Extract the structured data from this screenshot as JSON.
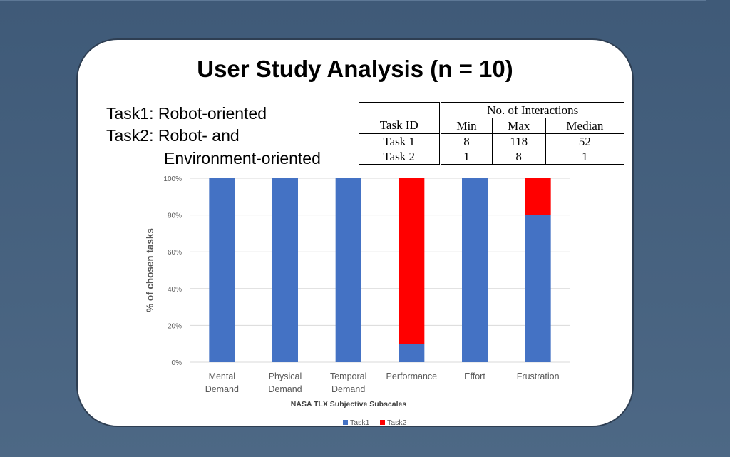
{
  "slide": {
    "title": "User Study Analysis (n = 10)",
    "task_lines": [
      "Task1: Robot-oriented",
      "Task2: Robot- and",
      "Environment-oriented"
    ]
  },
  "interactions_table": {
    "group_header": "No. of Interactions",
    "columns": [
      "Task ID",
      "Min",
      "Max",
      "Median"
    ],
    "rows": [
      [
        "Task 1",
        "8",
        "118",
        "52"
      ],
      [
        "Task 2",
        "1",
        "8",
        "1"
      ]
    ]
  },
  "colors": {
    "task1": "#4472c4",
    "task2": "#ff0000",
    "grid": "#d9d9d9"
  },
  "chart_data": {
    "type": "bar",
    "stacked": true,
    "categories": [
      [
        "Mental",
        "Demand"
      ],
      [
        "Physical",
        "Demand"
      ],
      [
        "Temporal",
        "Demand"
      ],
      [
        "Performance"
      ],
      [
        "Effort"
      ],
      [
        "Frustration"
      ]
    ],
    "series": [
      {
        "name": "Task1",
        "values": [
          100,
          100,
          100,
          10,
          100,
          80
        ]
      },
      {
        "name": "Task2",
        "values": [
          0,
          0,
          0,
          90,
          0,
          20
        ]
      }
    ],
    "ylim": [
      0,
      100
    ],
    "yticks": [
      "0%",
      "20%",
      "40%",
      "60%",
      "80%",
      "100%"
    ],
    "ylabel": "% of chosen tasks",
    "xlabel": "NASA TLX  Subjective Subscales",
    "legend": "bottom",
    "grid": true
  }
}
